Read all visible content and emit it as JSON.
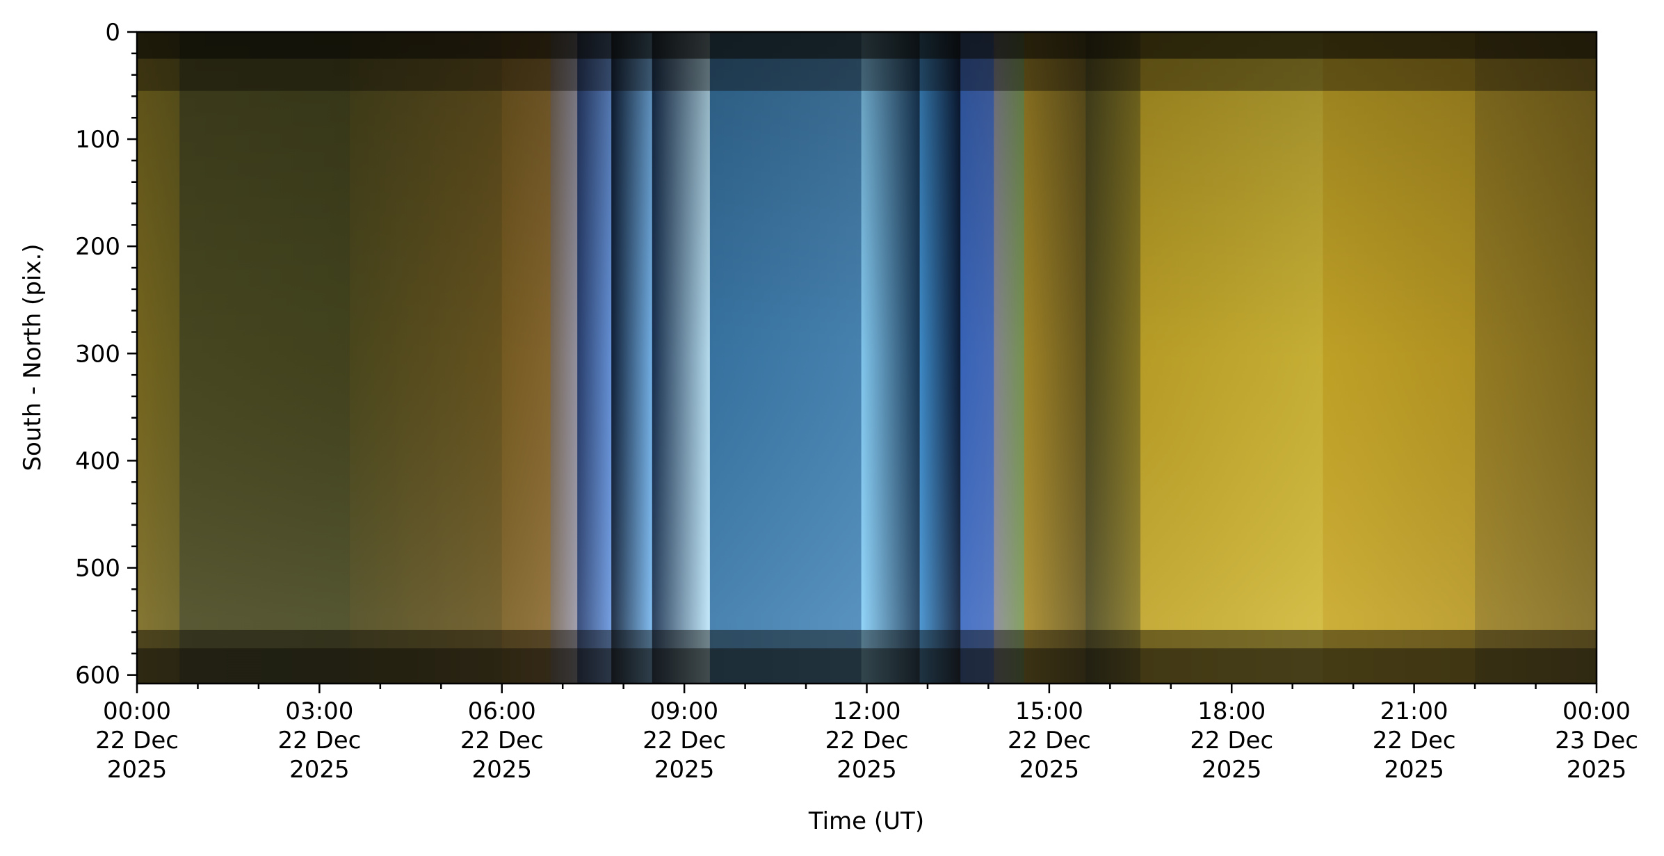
{
  "chart_data": {
    "type": "heatmap",
    "title": "",
    "xlabel": "Time (UT)",
    "ylabel": "South - North (pix.)",
    "xlim_hours": [
      0,
      24
    ],
    "ylim": [
      608,
      0
    ],
    "y_ticks": [
      0,
      100,
      200,
      300,
      400,
      500,
      600
    ],
    "y_minor_step": 20,
    "x_minor_step_hours": 1,
    "x_ticks": [
      {
        "hour": 0,
        "lines": [
          "00:00",
          "22 Dec",
          "2025"
        ]
      },
      {
        "hour": 3,
        "lines": [
          "03:00",
          "22 Dec",
          "2025"
        ]
      },
      {
        "hour": 6,
        "lines": [
          "06:00",
          "22 Dec",
          "2025"
        ]
      },
      {
        "hour": 9,
        "lines": [
          "09:00",
          "22 Dec",
          "2025"
        ]
      },
      {
        "hour": 12,
        "lines": [
          "12:00",
          "22 Dec",
          "2025"
        ]
      },
      {
        "hour": 15,
        "lines": [
          "15:00",
          "22 Dec",
          "2025"
        ]
      },
      {
        "hour": 18,
        "lines": [
          "18:00",
          "22 Dec",
          "2025"
        ]
      },
      {
        "hour": 21,
        "lines": [
          "21:00",
          "22 Dec",
          "2025"
        ]
      },
      {
        "hour": 24,
        "lines": [
          "00:00",
          "23 Dec",
          "2025"
        ]
      }
    ],
    "bands": [
      {
        "start": 0.0,
        "end": 0.7,
        "left": "#7a6a20",
        "right": "#6a6020"
      },
      {
        "start": 0.7,
        "end": 3.5,
        "left": "#4a4a22",
        "right": "#45461f"
      },
      {
        "start": 3.5,
        "end": 6.0,
        "left": "#4e4a1e",
        "right": "#6a5620"
      },
      {
        "start": 6.0,
        "end": 6.8,
        "left": "#7a5e22",
        "right": "#8a6a30"
      },
      {
        "start": 6.8,
        "end": 7.24,
        "left": "#7a6a58",
        "right": "#9a98a8"
      },
      {
        "start": 7.24,
        "end": 7.8,
        "left": "#2a4070",
        "right": "#6a98e0"
      },
      {
        "start": 7.8,
        "end": 8.47,
        "left": "#102038",
        "right": "#78b8f0"
      },
      {
        "start": 8.47,
        "end": 9.42,
        "left": "#183050",
        "right": "#c0e8fa"
      },
      {
        "start": 9.42,
        "end": 11.91,
        "left": "#3a78a8",
        "right": "#4a88b8"
      },
      {
        "start": 11.91,
        "end": 12.87,
        "left": "#88d0f8",
        "right": "#183858"
      },
      {
        "start": 12.87,
        "end": 13.54,
        "left": "#4090d0",
        "right": "#0c1c38"
      },
      {
        "start": 13.54,
        "end": 14.09,
        "left": "#3a68c0",
        "right": "#4a70c0"
      },
      {
        "start": 14.09,
        "end": 14.59,
        "left": "#8a8a98",
        "right": "#7a9a50"
      },
      {
        "start": 14.59,
        "end": 15.6,
        "left": "#a88a28",
        "right": "#6a5a20"
      },
      {
        "start": 15.6,
        "end": 16.5,
        "left": "#4e4a20",
        "right": "#8a7a24"
      },
      {
        "start": 16.5,
        "end": 19.5,
        "left": "#c0a428",
        "right": "#d0b838"
      },
      {
        "start": 19.5,
        "end": 22.0,
        "left": "#c8a828",
        "right": "#b89824"
      },
      {
        "start": 22.0,
        "end": 24.0,
        "left": "#9a8024",
        "right": "#806a20"
      }
    ],
    "horizontal_dark_bands": [
      {
        "from": 0,
        "to": 25,
        "opacity": 0.75
      },
      {
        "from": 25,
        "to": 55,
        "opacity": 0.4
      },
      {
        "from": 558,
        "to": 575,
        "opacity": 0.45
      },
      {
        "from": 575,
        "to": 608,
        "opacity": 0.7
      }
    ]
  }
}
